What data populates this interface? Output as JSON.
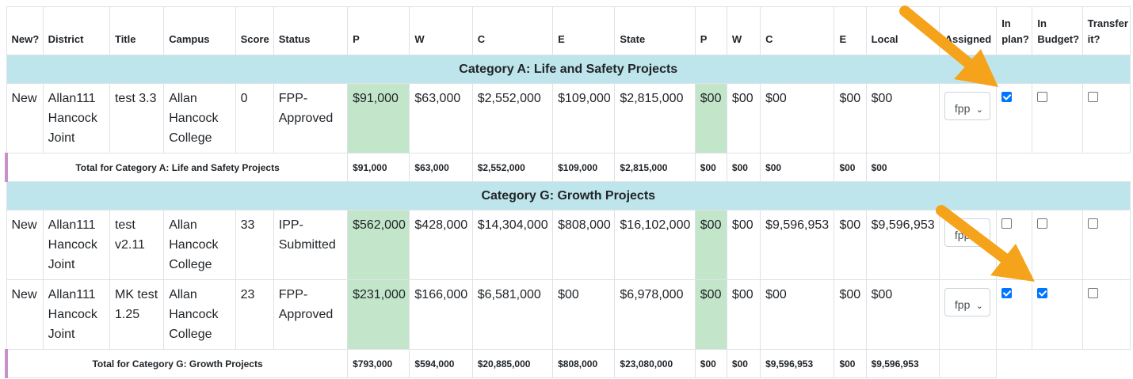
{
  "headers": {
    "new": "New?",
    "district": "District",
    "title": "Title",
    "campus": "Campus",
    "score": "Score",
    "status": "Status",
    "p1": "P",
    "w1": "W",
    "c1": "C",
    "e1": "E",
    "state": "State",
    "p2": "P",
    "w2": "W",
    "c2": "C",
    "e2": "E",
    "local": "Local",
    "assigned": "Assigned",
    "in_plan": "In plan?",
    "in_budget": "In Budget?",
    "transfer": "Transfer it?"
  },
  "categories": [
    {
      "title": "Category A: Life and Safety Projects",
      "rows": [
        {
          "new": "New",
          "district": "Allan111 Hancock Joint",
          "title": "test 3.3",
          "campus": "Allan Hancock College",
          "score": "0",
          "status": "FPP-Approved",
          "p1": "$91,000",
          "w1": "$63,000",
          "c1": "$2,552,000",
          "e1": "$109,000",
          "state": "$2,815,000",
          "p2": "$00",
          "w2": "$00",
          "c2": "$00",
          "e2": "$00",
          "local": "$00",
          "assigned": "fpp",
          "in_plan": true,
          "in_budget": false,
          "transfer": false
        }
      ],
      "total": {
        "label": "Total for Category A: Life and Safety Projects",
        "p1": "$91,000",
        "w1": "$63,000",
        "c1": "$2,552,000",
        "e1": "$109,000",
        "state": "$2,815,000",
        "p2": "$00",
        "w2": "$00",
        "c2": "$00",
        "e2": "$00",
        "local": "$00"
      }
    },
    {
      "title": "Category G: Growth Projects",
      "rows": [
        {
          "new": "New",
          "district": "Allan111 Hancock Joint",
          "title": "test v2.11",
          "campus": "Allan Hancock College",
          "score": "33",
          "status": "IPP-Submitted",
          "p1": "$562,000",
          "w1": "$428,000",
          "c1": "$14,304,000",
          "e1": "$808,000",
          "state": "$16,102,000",
          "p2": "$00",
          "w2": "$00",
          "c2": "$9,596,953",
          "e2": "$00",
          "local": "$9,596,953",
          "assigned": "fpp",
          "in_plan": false,
          "in_budget": false,
          "transfer": false
        },
        {
          "new": "New",
          "district": "Allan111 Hancock Joint",
          "title": "MK test 1.25",
          "campus": "Allan Hancock College",
          "score": "23",
          "status": "FPP-Approved",
          "p1": "$231,000",
          "w1": "$166,000",
          "c1": "$6,581,000",
          "e1": "$00",
          "state": "$6,978,000",
          "p2": "$00",
          "w2": "$00",
          "c2": "$00",
          "e2": "$00",
          "local": "$00",
          "assigned": "fpp",
          "in_plan": true,
          "in_budget": true,
          "transfer": false
        }
      ],
      "total": {
        "label": "Total for Category G: Growth Projects",
        "p1": "$793,000",
        "w1": "$594,000",
        "c1": "$20,885,000",
        "e1": "$808,000",
        "state": "$23,080,000",
        "p2": "$00",
        "w2": "$00",
        "c2": "$9,596,953",
        "e2": "$00",
        "local": "$9,596,953"
      }
    }
  ],
  "colors": {
    "category_band": "#bee5eb",
    "funding_highlight": "#c3e6cb",
    "checkbox_checked": "#0075ff",
    "arrow": "#f5a31a"
  },
  "annotations": [
    {
      "icon": "arrow-icon"
    },
    {
      "icon": "arrow-icon"
    }
  ]
}
